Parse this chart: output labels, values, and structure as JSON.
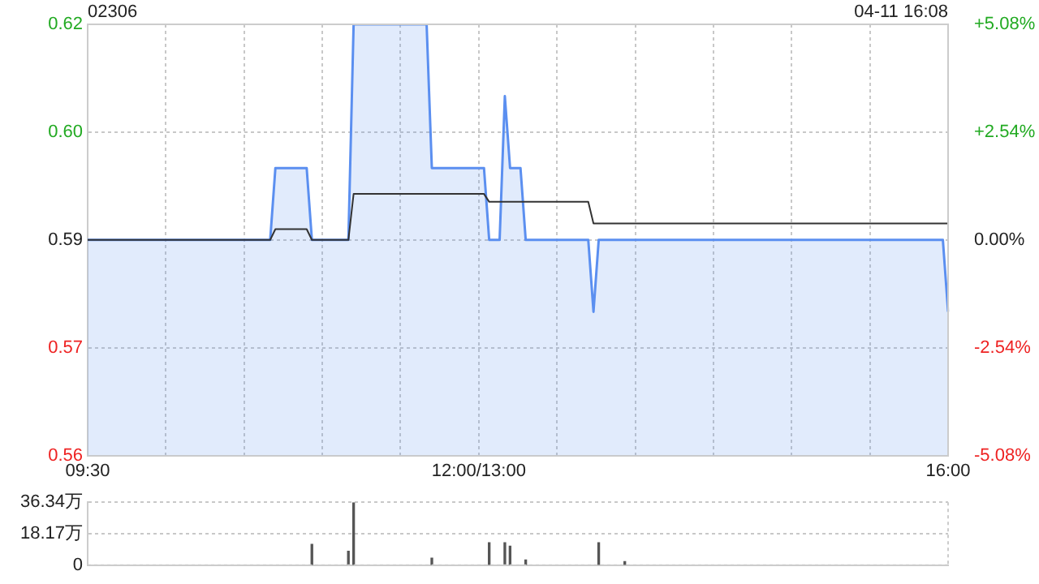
{
  "chart_data": [
    {
      "type": "line",
      "title": "02306",
      "annotations": [
        "04-11 16:08"
      ],
      "categories": [
        "09:30",
        null,
        null,
        null,
        null,
        null,
        null,
        null,
        null,
        null,
        null,
        null,
        null,
        null,
        null,
        null,
        null,
        null,
        null,
        null,
        null,
        null,
        null,
        null,
        null,
        null,
        null,
        null,
        null,
        null,
        null,
        null,
        null,
        null,
        null,
        null,
        null,
        null,
        null,
        null,
        null,
        null,
        null,
        null,
        null,
        null,
        null,
        null,
        null,
        null,
        null,
        null,
        null,
        null,
        null,
        null,
        null,
        null,
        null,
        null,
        null,
        null,
        null,
        null,
        null,
        null,
        null,
        null,
        null,
        null,
        null,
        null,
        null,
        null,
        null,
        "12:00/13:00",
        null,
        null,
        null,
        null,
        null,
        null,
        null,
        null,
        null,
        null,
        null,
        null,
        null,
        null,
        null,
        null,
        null,
        null,
        null,
        null,
        null,
        null,
        null,
        null,
        null,
        null,
        null,
        null,
        null,
        null,
        null,
        null,
        null,
        null,
        null,
        null,
        null,
        null,
        null,
        null,
        null,
        null,
        null,
        null,
        null,
        null,
        null,
        null,
        null,
        null,
        null,
        null,
        null,
        null,
        null,
        null,
        null,
        null,
        null,
        null,
        null,
        null,
        null,
        null,
        null,
        null,
        null,
        null,
        null,
        null,
        null,
        null,
        null,
        null,
        null,
        null,
        null,
        null,
        null,
        null,
        null,
        null,
        null,
        null,
        null,
        null,
        null,
        null,
        null,
        "16:00"
      ],
      "ylim": [
        0.56,
        0.62
      ],
      "yticks": [
        0.56,
        {
          "value": 0.575,
          "label": "0.57"
        },
        0.59,
        {
          "value": 0.605,
          "label": "0.60"
        },
        0.62
      ],
      "y2lim": [
        -5.08,
        5.08
      ],
      "y2ticks": [
        {
          "value": -5.08,
          "label": "-5.08%"
        },
        {
          "value": -2.54,
          "label": "-2.54%"
        },
        {
          "value": 0,
          "label": "0.00%"
        },
        {
          "value": 2.54,
          "label": "+2.54%"
        },
        {
          "value": 5.08,
          "label": "+5.08%"
        }
      ],
      "grid": true,
      "marker": "none",
      "series": [
        {
          "type": "area",
          "color": "#5b8ff0",
          "values": [
            0.59,
            0.59,
            0.59,
            0.59,
            0.59,
            0.59,
            0.59,
            0.59,
            0.59,
            0.59,
            0.59,
            0.59,
            0.59,
            0.59,
            0.59,
            0.59,
            0.59,
            0.59,
            0.59,
            0.59,
            0.59,
            0.59,
            0.59,
            0.59,
            0.59,
            0.59,
            0.59,
            0.59,
            0.59,
            0.59,
            0.59,
            0.59,
            0.59,
            0.59,
            0.59,
            0.59,
            0.6,
            0.6,
            0.6,
            0.6,
            0.6,
            0.6,
            0.6,
            0.59,
            0.59,
            0.59,
            0.59,
            0.59,
            0.59,
            0.59,
            0.59,
            0.62,
            0.62,
            0.62,
            0.62,
            0.62,
            0.62,
            0.62,
            0.62,
            0.62,
            0.62,
            0.62,
            0.62,
            0.62,
            0.62,
            0.62,
            0.6,
            0.6,
            0.6,
            0.6,
            0.6,
            0.6,
            0.6,
            0.6,
            0.6,
            0.6,
            0.6,
            0.59,
            0.59,
            0.59,
            0.61,
            0.6,
            0.6,
            0.6,
            0.59,
            0.59,
            0.59,
            0.59,
            0.59,
            0.59,
            0.59,
            0.59,
            0.59,
            0.59,
            0.59,
            0.59,
            0.59,
            0.58,
            0.59,
            0.59,
            0.59,
            0.59,
            0.59,
            0.59,
            0.59,
            0.59,
            0.59,
            0.59,
            0.59,
            0.59,
            0.59,
            0.59,
            0.59,
            0.59,
            0.59,
            0.59,
            0.59,
            0.59,
            0.59,
            0.59,
            0.59,
            0.59,
            0.59,
            0.59,
            0.59,
            0.59,
            0.59,
            0.59,
            0.59,
            0.59,
            0.59,
            0.59,
            0.59,
            0.59,
            0.59,
            0.59,
            0.59,
            0.59,
            0.59,
            0.59,
            0.59,
            0.59,
            0.59,
            0.59,
            0.59,
            0.59,
            0.59,
            0.59,
            0.59,
            0.59,
            0.59,
            0.59,
            0.59,
            0.59,
            0.59,
            0.59,
            0.59,
            0.59,
            0.59,
            0.59,
            0.59,
            0.59,
            0.59,
            0.59,
            0.59,
            0.58
          ]
        },
        {
          "type": "line",
          "color": "#333333",
          "values": [
            0.59,
            0.59,
            0.59,
            0.59,
            0.59,
            0.59,
            0.59,
            0.59,
            0.59,
            0.59,
            0.59,
            0.59,
            0.59,
            0.59,
            0.59,
            0.59,
            0.59,
            0.59,
            0.59,
            0.59,
            0.59,
            0.59,
            0.59,
            0.59,
            0.59,
            0.59,
            0.59,
            0.59,
            0.59,
            0.59,
            0.59,
            0.59,
            0.59,
            0.59,
            0.59,
            0.59,
            0.5915,
            0.5915,
            0.5915,
            0.5915,
            0.5915,
            0.5915,
            0.5915,
            0.59,
            0.59,
            0.59,
            0.59,
            0.59,
            0.59,
            0.59,
            0.59,
            0.5964,
            0.5964,
            0.5964,
            0.5964,
            0.5964,
            0.5964,
            0.5964,
            0.5964,
            0.5964,
            0.5964,
            0.5964,
            0.5964,
            0.5964,
            0.5964,
            0.5964,
            0.5964,
            0.5964,
            0.5964,
            0.5964,
            0.5964,
            0.5964,
            0.5964,
            0.5964,
            0.5964,
            0.5964,
            0.5964,
            0.5953,
            0.5953,
            0.5953,
            0.5953,
            0.5953,
            0.5953,
            0.5953,
            0.5953,
            0.5953,
            0.5953,
            0.5953,
            0.5953,
            0.5953,
            0.5953,
            0.5953,
            0.5953,
            0.5953,
            0.5953,
            0.5953,
            0.5953,
            0.5923,
            0.5923,
            0.5923,
            0.5923,
            0.5923,
            0.5923,
            0.5923,
            0.5923,
            0.5923,
            0.5923,
            0.5923,
            0.5923,
            0.5923,
            0.5923,
            0.5923,
            0.5923,
            0.5923,
            0.5923,
            0.5923,
            0.5923,
            0.5923,
            0.5923,
            0.5923,
            0.5923,
            0.5923,
            0.5923,
            0.5923,
            0.5923,
            0.5923,
            0.5923,
            0.5923,
            0.5923,
            0.5923,
            0.5923,
            0.5923,
            0.5923,
            0.5923,
            0.5923,
            0.5923,
            0.5923,
            0.5923,
            0.5923,
            0.5923,
            0.5923,
            0.5923,
            0.5923,
            0.5923,
            0.5923,
            0.5923,
            0.5923,
            0.5923,
            0.5923,
            0.5923,
            0.5923,
            0.5923,
            0.5923,
            0.5923,
            0.5923,
            0.5923,
            0.5923,
            0.5923,
            0.5923,
            0.5923,
            0.5923,
            0.5923,
            0.5923,
            0.5923,
            0.5923,
            0.5923
          ]
        }
      ]
    },
    {
      "type": "bar",
      "categories": [
        null,
        null,
        null,
        null,
        null,
        null,
        null,
        null,
        null,
        null,
        null,
        null,
        null,
        null,
        null,
        null,
        null,
        null,
        null,
        null,
        null,
        null,
        null,
        null,
        null,
        null,
        null,
        null,
        null,
        null,
        null,
        null,
        null,
        null,
        null,
        null,
        null,
        null,
        null,
        null,
        null,
        null,
        null,
        null,
        null,
        null,
        null,
        null,
        null,
        null,
        null,
        null,
        null,
        null,
        null,
        null,
        null,
        null,
        null,
        null,
        null,
        null,
        null,
        null,
        null,
        null,
        null,
        null,
        null,
        null,
        null,
        null,
        null,
        null,
        null,
        null,
        null,
        null,
        null,
        null,
        null,
        null,
        null,
        null,
        null,
        null,
        null,
        null,
        null,
        null,
        null,
        null,
        null,
        null,
        null,
        null,
        null,
        null,
        null,
        null,
        null,
        null,
        null,
        null,
        null,
        null,
        null,
        null,
        null,
        null,
        null,
        null,
        null,
        null,
        null,
        null,
        null,
        null,
        null,
        null,
        null,
        null,
        null,
        null,
        null,
        null,
        null,
        null,
        null,
        null,
        null,
        null,
        null,
        null,
        null,
        null,
        null,
        null,
        null,
        null,
        null,
        null,
        null,
        null,
        null,
        null,
        null,
        null,
        null,
        null,
        null,
        null,
        null,
        null,
        null,
        null,
        null,
        null,
        null,
        null,
        null,
        null,
        null,
        null,
        null,
        null
      ],
      "ylim": [
        0,
        36.34
      ],
      "yticks": [
        0,
        {
          "value": 18.17,
          "label": "18.17万"
        },
        {
          "value": 36.34,
          "label": "36.34万"
        }
      ],
      "tick_labels": "y",
      "grid": "y",
      "series": [
        {
          "color": "#555555",
          "values": [
            null,
            null,
            null,
            null,
            null,
            null,
            null,
            null,
            null,
            null,
            null,
            null,
            null,
            null,
            null,
            null,
            null,
            null,
            null,
            null,
            null,
            null,
            null,
            null,
            null,
            null,
            null,
            null,
            null,
            null,
            null,
            null,
            null,
            null,
            null,
            null,
            null,
            null,
            null,
            null,
            null,
            null,
            null,
            12,
            null,
            null,
            null,
            null,
            null,
            null,
            8,
            36,
            null,
            null,
            null,
            null,
            null,
            null,
            null,
            null,
            null,
            null,
            null,
            null,
            null,
            null,
            4,
            null,
            null,
            null,
            null,
            null,
            null,
            null,
            null,
            null,
            null,
            13,
            null,
            null,
            13,
            11,
            null,
            null,
            3,
            null,
            null,
            null,
            null,
            null,
            null,
            null,
            null,
            null,
            null,
            null,
            null,
            null,
            13,
            null,
            null,
            null,
            null,
            2,
            null,
            null,
            null,
            null,
            null,
            null,
            null,
            null,
            null,
            null,
            null,
            null,
            null,
            null,
            null,
            null,
            null,
            null,
            null,
            null,
            null,
            null,
            null,
            null,
            null,
            null,
            null,
            null,
            null,
            null,
            null,
            null,
            null,
            null,
            null,
            null,
            null,
            null,
            null,
            null,
            null,
            null,
            null,
            null,
            null,
            null,
            null,
            null,
            null,
            null,
            null,
            null,
            null,
            null,
            null,
            null,
            null,
            null,
            null,
            null,
            null,
            null
          ]
        }
      ]
    }
  ]
}
